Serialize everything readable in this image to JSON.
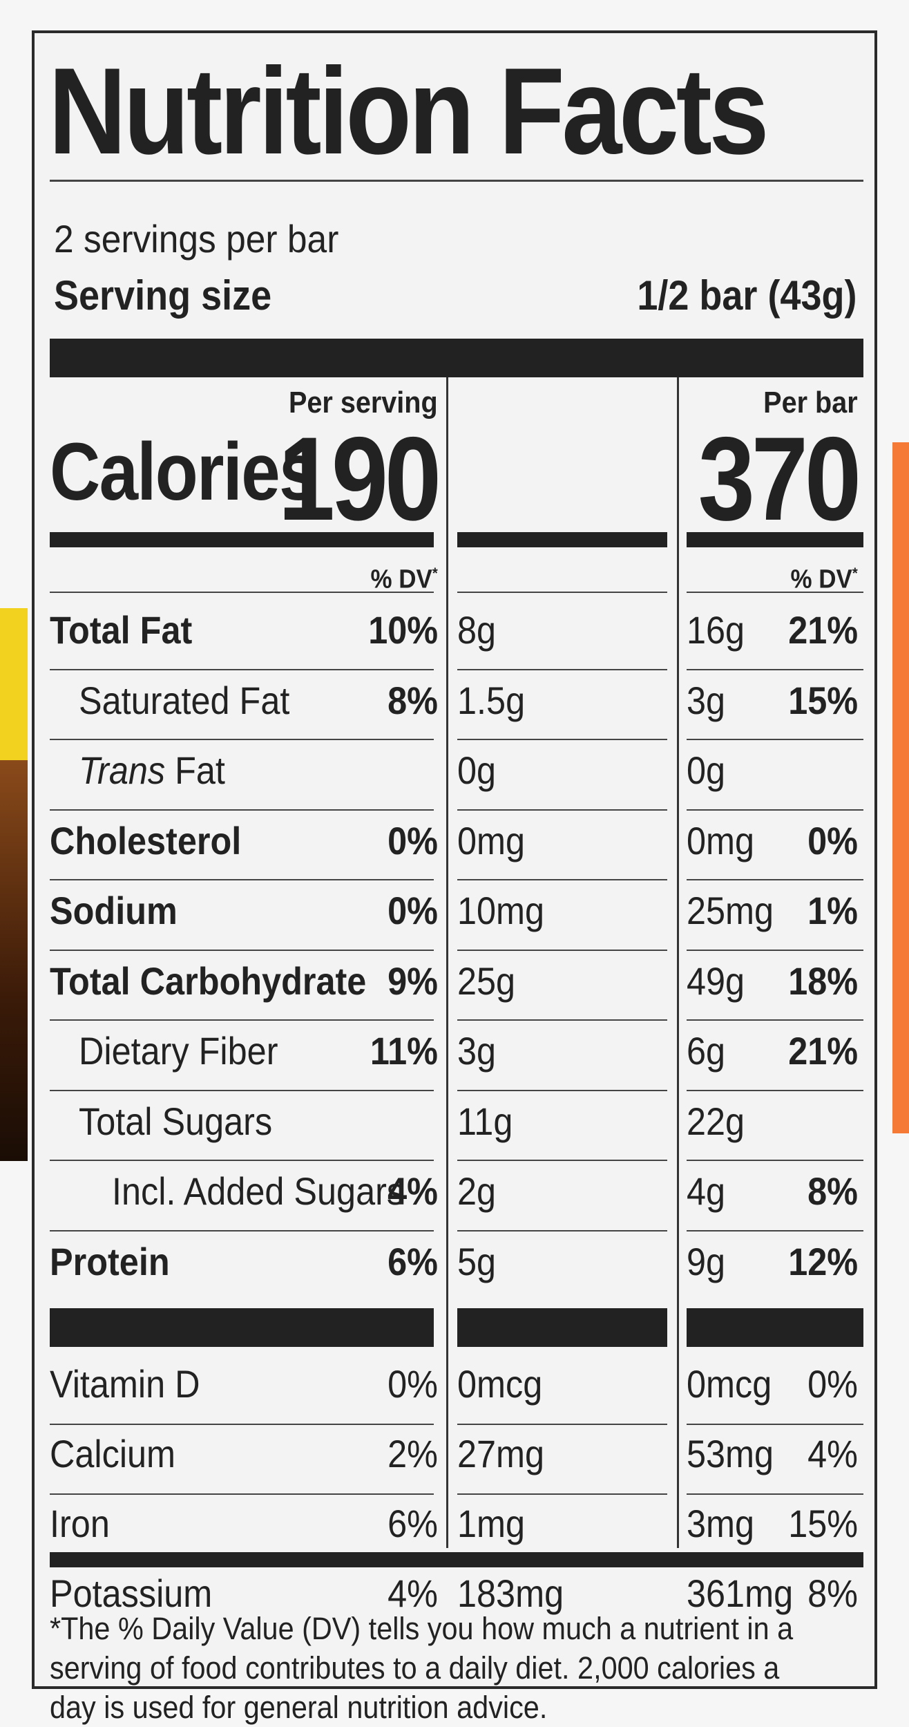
{
  "title": "Nutrition Facts",
  "servings_per_container": "2 servings per bar",
  "serving_size_label": "Serving size",
  "serving_size_value": "1/2 bar (43g)",
  "columns": [
    "Per serving",
    "Per bar"
  ],
  "calories_label": "Calories",
  "calories": [
    "190",
    "370"
  ],
  "dv_header": "% DV",
  "dv_star": "*",
  "nutrients": [
    {
      "name": "Total Fat",
      "serving_amount": "8g",
      "serving_dv": "10%",
      "bar_amount": "16g",
      "bar_dv": "21%"
    },
    {
      "name": "Saturated Fat",
      "serving_amount": "1.5g",
      "serving_dv": "8%",
      "bar_amount": "3g",
      "bar_dv": "15%"
    },
    {
      "name": "Trans",
      "name_suffix": " Fat",
      "serving_amount": "0g",
      "serving_dv": "",
      "bar_amount": "0g",
      "bar_dv": ""
    },
    {
      "name": "Cholesterol",
      "serving_amount": "0mg",
      "serving_dv": "0%",
      "bar_amount": "0mg",
      "bar_dv": "0%"
    },
    {
      "name": "Sodium",
      "serving_amount": "10mg",
      "serving_dv": "0%",
      "bar_amount": "25mg",
      "bar_dv": "1%"
    },
    {
      "name": "Total Carbohydrate",
      "serving_amount": "25g",
      "serving_dv": "9%",
      "bar_amount": "49g",
      "bar_dv": "18%"
    },
    {
      "name": "Dietary Fiber",
      "serving_amount": "3g",
      "serving_dv": "11%",
      "bar_amount": "6g",
      "bar_dv": "21%"
    },
    {
      "name": "Total Sugars",
      "serving_amount": "11g",
      "serving_dv": "",
      "bar_amount": "22g",
      "bar_dv": ""
    },
    {
      "name": "Incl. Added Sugars",
      "serving_amount": "2g",
      "serving_dv": "4%",
      "bar_amount": "4g",
      "bar_dv": "8%"
    },
    {
      "name": "Protein",
      "serving_amount": "5g",
      "serving_dv": "6%",
      "bar_amount": "9g",
      "bar_dv": "12%"
    }
  ],
  "vitamins": [
    {
      "name": "Vitamin D",
      "serving_amount": "0mcg",
      "serving_dv": "0%",
      "bar_amount": "0mcg",
      "bar_dv": "0%"
    },
    {
      "name": "Calcium",
      "serving_amount": "27mg",
      "serving_dv": "2%",
      "bar_amount": "53mg",
      "bar_dv": "4%"
    },
    {
      "name": "Iron",
      "serving_amount": "1mg",
      "serving_dv": "6%",
      "bar_amount": "3mg",
      "bar_dv": "15%"
    },
    {
      "name": "Potassium",
      "serving_amount": "183mg",
      "serving_dv": "4%",
      "bar_amount": "361mg",
      "bar_dv": "8%"
    }
  ],
  "footnote": "*The % Daily Value (DV) tells you how much a nutrient in a serving of food contributes to a daily diet. 2,000 calories a day is used for general nutrition advice.",
  "colors": {
    "ink": "#222222",
    "label_bg": "#f3f3f3",
    "accent_orange": "#f47a36",
    "accent_yellow": "#f3d21f",
    "accent_brown": "#6b3a17"
  }
}
